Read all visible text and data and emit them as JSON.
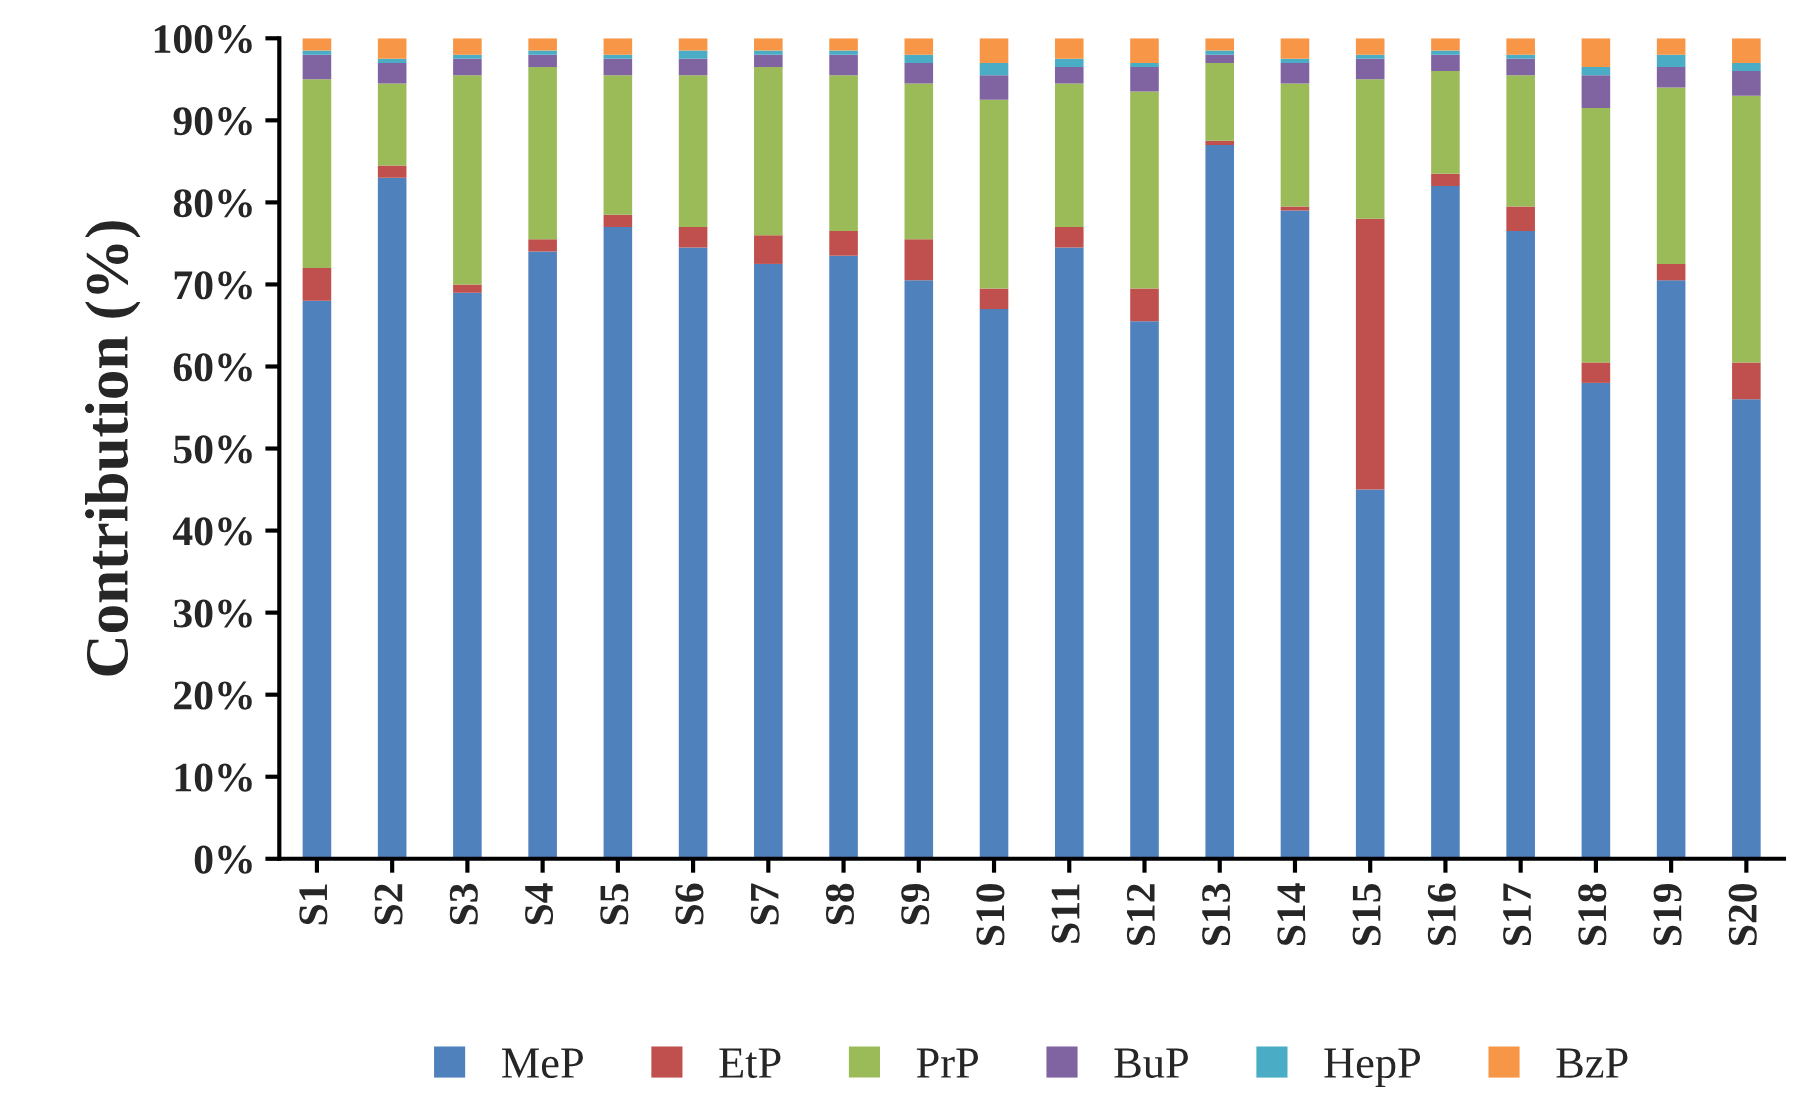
{
  "chart_data": {
    "type": "bar",
    "stacked": true,
    "ylabel": "Contribution (%)",
    "categories": [
      "S1",
      "S2",
      "S3",
      "S4",
      "S5",
      "S6",
      "S7",
      "S8",
      "S9",
      "S10",
      "S11",
      "S12",
      "S13",
      "S14",
      "S15",
      "S16",
      "S17",
      "S18",
      "S19",
      "S20"
    ],
    "series": [
      {
        "name": "MeP",
        "color": "#4f81bd",
        "values": [
          68,
          83,
          69,
          74,
          77,
          74.5,
          72.5,
          73.5,
          70.5,
          67,
          74.5,
          65.5,
          87,
          79,
          45,
          82,
          76.5,
          58,
          70.5,
          56
        ]
      },
      {
        "name": "EtP",
        "color": "#c0504d",
        "values": [
          4,
          1.5,
          1,
          1.5,
          1.5,
          2.5,
          3.5,
          3,
          5,
          2.5,
          2.5,
          4,
          0.5,
          0.5,
          33,
          1.5,
          3,
          2.5,
          2,
          4.5
        ]
      },
      {
        "name": "PrP",
        "color": "#9bbb59",
        "values": [
          23,
          10,
          25.5,
          21,
          17,
          18.5,
          20.5,
          19,
          19,
          23,
          17.5,
          24,
          9.5,
          15,
          17,
          12.5,
          16,
          31,
          21.5,
          32.5
        ]
      },
      {
        "name": "BuP",
        "color": "#8064a2",
        "values": [
          3,
          2.5,
          2,
          1.5,
          2,
          2,
          1.5,
          2.5,
          2.5,
          3,
          2,
          3,
          1,
          2.5,
          2.5,
          2,
          2,
          4,
          2.5,
          3
        ]
      },
      {
        "name": "HepP",
        "color": "#4bacc6",
        "values": [
          0.5,
          0.5,
          0.5,
          0.5,
          0.5,
          1,
          0.5,
          0.5,
          1,
          1.5,
          1,
          0.5,
          0.5,
          0.5,
          0.5,
          0.5,
          0.5,
          1,
          1.5,
          1
        ]
      },
      {
        "name": "BzP",
        "color": "#f79646",
        "values": [
          1.5,
          2.5,
          2,
          1.5,
          2,
          1.5,
          1.5,
          1.5,
          2,
          3,
          2.5,
          3,
          1.5,
          2.5,
          2,
          1.5,
          2,
          3.5,
          2,
          3
        ]
      }
    ],
    "ylim": [
      0,
      100
    ],
    "yticks": [
      {
        "value": 0,
        "label": "0%"
      },
      {
        "value": 10,
        "label": "10%"
      },
      {
        "value": 20,
        "label": "20%"
      },
      {
        "value": 30,
        "label": "30%"
      },
      {
        "value": 40,
        "label": "40%"
      },
      {
        "value": 50,
        "label": "50%"
      },
      {
        "value": 60,
        "label": "60%"
      },
      {
        "value": 70,
        "label": "70%"
      },
      {
        "value": 80,
        "label": "80%"
      },
      {
        "value": 90,
        "label": "90%"
      },
      {
        "value": 100,
        "label": "100%"
      }
    ],
    "grid": false,
    "legend": "bottom"
  }
}
